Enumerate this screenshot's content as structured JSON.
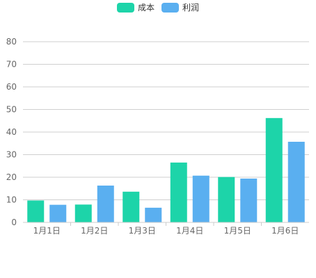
{
  "chart_data": {
    "type": "bar",
    "categories": [
      "1月1日",
      "1月2日",
      "1月3日",
      "1月4日",
      "1月5日",
      "1月6日"
    ],
    "series": [
      {
        "name": "成本",
        "values": [
          9.7,
          7.9,
          13.6,
          26.5,
          20.1,
          46.2
        ],
        "color": "#1dd4a9"
      },
      {
        "name": "利润",
        "values": [
          7.8,
          16.3,
          6.5,
          20.7,
          19.4,
          35.7
        ],
        "color": "#5aaff0"
      }
    ],
    "yTicks": [
      "0",
      "10",
      "20",
      "30",
      "40",
      "50",
      "60",
      "70",
      "80"
    ],
    "ylim": [
      0,
      80
    ],
    "grid": true,
    "legend_position": "top-center",
    "title": "",
    "xlabel": "",
    "ylabel": ""
  }
}
